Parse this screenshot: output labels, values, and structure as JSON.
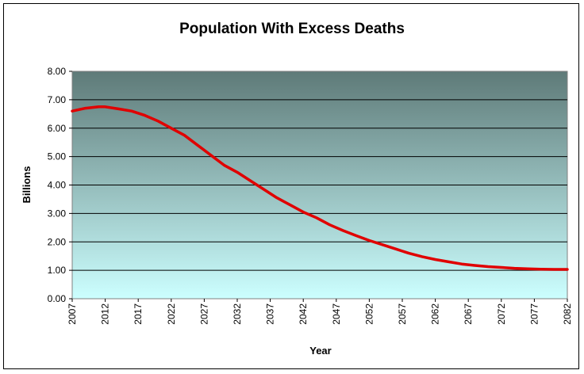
{
  "chart_data": {
    "type": "line",
    "title": "Population With Excess Deaths",
    "xlabel": "Year",
    "ylabel": "Billions",
    "ylim": [
      0,
      8
    ],
    "yticks": [
      "0.00",
      "1.00",
      "2.00",
      "3.00",
      "4.00",
      "5.00",
      "6.00",
      "7.00",
      "8.00"
    ],
    "xlim": [
      2007,
      2082
    ],
    "xticks": [
      "2007",
      "2012",
      "2017",
      "2022",
      "2027",
      "2032",
      "2037",
      "2042",
      "2047",
      "2052",
      "2057",
      "2062",
      "2067",
      "2072",
      "2077",
      "2082"
    ],
    "grid": true,
    "legend": "none",
    "background": "gradient dark slate top to light cyan bottom",
    "colors": {
      "line": "#e00000",
      "plot_top": "#5e7a78",
      "plot_bottom": "#ccffff",
      "grid": "#000000"
    },
    "series": [
      {
        "x": [
          2007,
          2009,
          2011,
          2012,
          2014,
          2016,
          2018,
          2020,
          2022,
          2024,
          2026,
          2028,
          2030,
          2032,
          2034,
          2036,
          2038,
          2040,
          2042,
          2044,
          2046,
          2048,
          2050,
          2052,
          2054,
          2056,
          2058,
          2060,
          2062,
          2064,
          2066,
          2068,
          2070,
          2072,
          2074,
          2076,
          2078,
          2080,
          2082
        ],
        "values": [
          6.6,
          6.7,
          6.75,
          6.75,
          6.68,
          6.6,
          6.45,
          6.25,
          6.0,
          5.75,
          5.4,
          5.05,
          4.7,
          4.45,
          4.15,
          3.85,
          3.55,
          3.3,
          3.05,
          2.85,
          2.6,
          2.4,
          2.22,
          2.05,
          1.9,
          1.75,
          1.6,
          1.48,
          1.38,
          1.3,
          1.22,
          1.17,
          1.13,
          1.1,
          1.07,
          1.05,
          1.04,
          1.03,
          1.03
        ]
      }
    ]
  }
}
